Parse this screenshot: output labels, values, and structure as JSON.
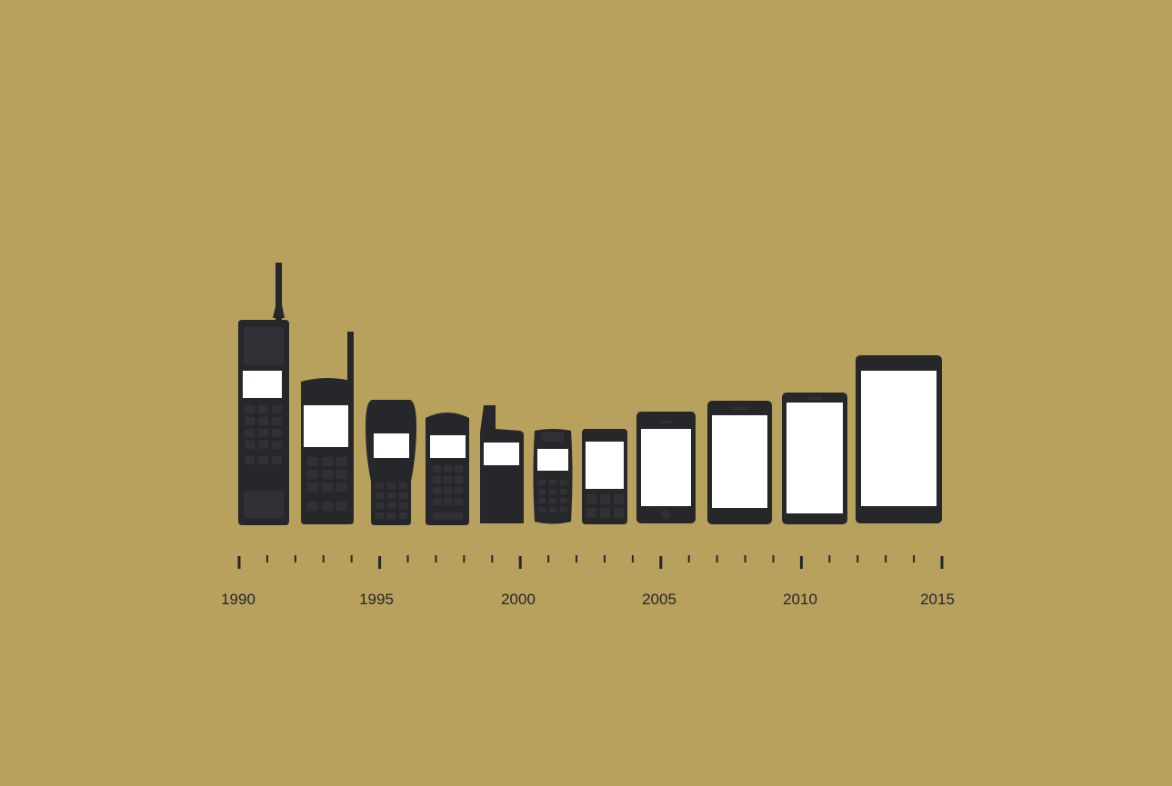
{
  "colors": {
    "background": "#b8a05d",
    "phone_body": "#25272b",
    "phone_detail": "#2f3136",
    "screen": "#ffffff"
  },
  "timeline": {
    "start_year": 1990,
    "end_year": 2015,
    "labels": [
      "1990",
      "1995",
      "2000",
      "2005",
      "2010",
      "2015"
    ]
  },
  "phones": [
    {
      "name": "brick-phone",
      "era": "1990"
    },
    {
      "name": "antenna-phone",
      "era": "1993"
    },
    {
      "name": "rounded-keypad-phone",
      "era": "1995"
    },
    {
      "name": "flat-top-keypad-phone",
      "era": "1997"
    },
    {
      "name": "stub-antenna-phone",
      "era": "1999"
    },
    {
      "name": "compact-keypad-phone",
      "era": "2001"
    },
    {
      "name": "small-screen-keypad-phone",
      "era": "2003"
    },
    {
      "name": "early-smartphone",
      "era": "2005"
    },
    {
      "name": "touchscreen-phone",
      "era": "2007"
    },
    {
      "name": "large-touchscreen-phone",
      "era": "2010"
    },
    {
      "name": "phablet",
      "era": "2013"
    }
  ]
}
